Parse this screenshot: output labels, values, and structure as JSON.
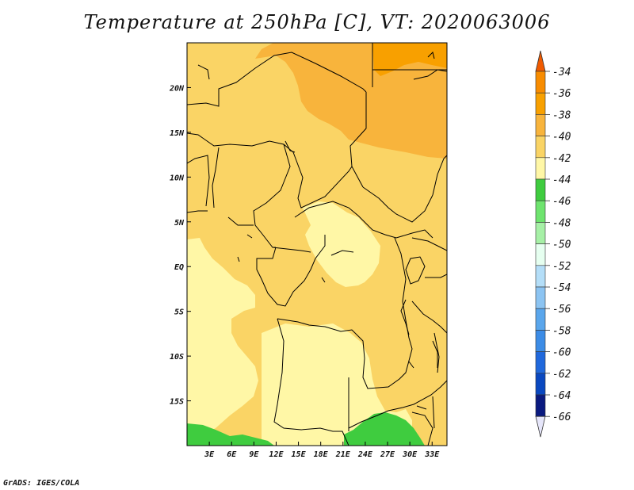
{
  "title": "Temperature at 250hPa [C], VT: 2020063006",
  "credit": "GrADS: IGES/COLA",
  "map": {
    "lon_range": [
      0,
      35
    ],
    "lat_range": [
      -20,
      25
    ],
    "x_ticks": [
      "3E",
      "6E",
      "9E",
      "12E",
      "15E",
      "18E",
      "21E",
      "24E",
      "27E",
      "30E",
      "33E"
    ],
    "y_ticks": [
      "20N",
      "15N",
      "10N",
      "5N",
      "EQ",
      "5S",
      "10S",
      "15S"
    ],
    "fill_colors": {
      "minus36": "#f8a000",
      "minus38": "#f8b43c",
      "minus40": "#fad465",
      "minus42": "#fff7a6",
      "minus44": "#3fcc3f",
      "background": "#fad465"
    }
  },
  "colorbar": {
    "labels": [
      "-34",
      "-36",
      "-38",
      "-40",
      "-42",
      "-44",
      "-46",
      "-48",
      "-50",
      "-52",
      "-54",
      "-56",
      "-58",
      "-60",
      "-62",
      "-64",
      "-66"
    ],
    "colors": [
      "#f05a00",
      "#f88c00",
      "#f8a000",
      "#f8b43c",
      "#fad465",
      "#fff7a6",
      "#3fcc3f",
      "#6ee46e",
      "#a6f0a6",
      "#e6fff0",
      "#b4def8",
      "#8cc4f2",
      "#5aa6ec",
      "#3c8ce6",
      "#2068dc",
      "#0a48c0",
      "#0a1a80"
    ]
  }
}
